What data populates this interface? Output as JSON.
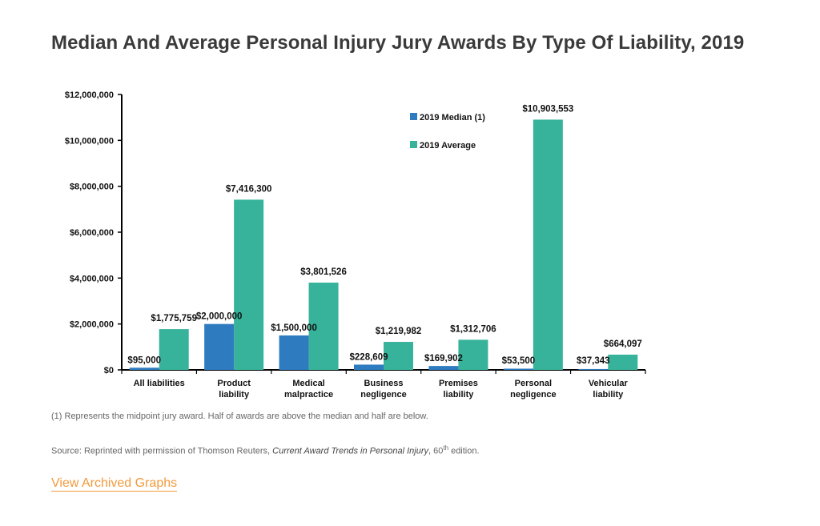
{
  "page": {
    "title": "Median And Average Personal Injury Jury Awards By Type Of Liability, 2019",
    "footnote": "(1) Represents the midpoint jury award. Half of awards are above the median and half are below.",
    "source_prefix": "Source: Reprinted with permission of Thomson Reuters, ",
    "source_title": "Current Award Trends in Personal Injury",
    "source_edition_num": ", 60",
    "source_edition_sup": "th",
    "source_suffix": " edition.",
    "archive_link": "View Archived Graphs"
  },
  "colors": {
    "median": "#2e7bbf",
    "average": "#36b39a",
    "link": "#f39a3c"
  },
  "chart_data": {
    "type": "bar",
    "title": "",
    "xlabel": "",
    "ylabel": "",
    "ylim": [
      0,
      12000000
    ],
    "yticks": [
      0,
      2000000,
      4000000,
      6000000,
      8000000,
      10000000,
      12000000
    ],
    "ytick_labels": [
      "$0",
      "$2,000,000",
      "$4,000,000",
      "$6,000,000",
      "$8,000,000",
      "$10,000,000",
      "$12,000,000"
    ],
    "grid": false,
    "legend_position": "top-right",
    "categories": [
      [
        "All liabilities"
      ],
      [
        "Product",
        "liability"
      ],
      [
        "Medical",
        "malpractice"
      ],
      [
        "Business",
        "negligence"
      ],
      [
        "Premises",
        "liability"
      ],
      [
        "Personal",
        "negligence"
      ],
      [
        "Vehicular",
        "liability"
      ]
    ],
    "series": [
      {
        "name": "2019 Median (1)",
        "values": [
          95000,
          2000000,
          1500000,
          228609,
          169902,
          53500,
          37343
        ],
        "labels": [
          "$95,000",
          "$2,000,000",
          "$1,500,000",
          "$228,609",
          "$169,902",
          "$53,500",
          "$37,343"
        ]
      },
      {
        "name": "2019 Average",
        "values": [
          1775759,
          7416300,
          3801526,
          1219982,
          1312706,
          10903553,
          664097
        ],
        "labels": [
          "$1,775,759",
          "$7,416,300",
          "$3,801,526",
          "$1,219,982",
          "$1,312,706",
          "$10,903,553",
          "$664,097"
        ]
      }
    ]
  }
}
